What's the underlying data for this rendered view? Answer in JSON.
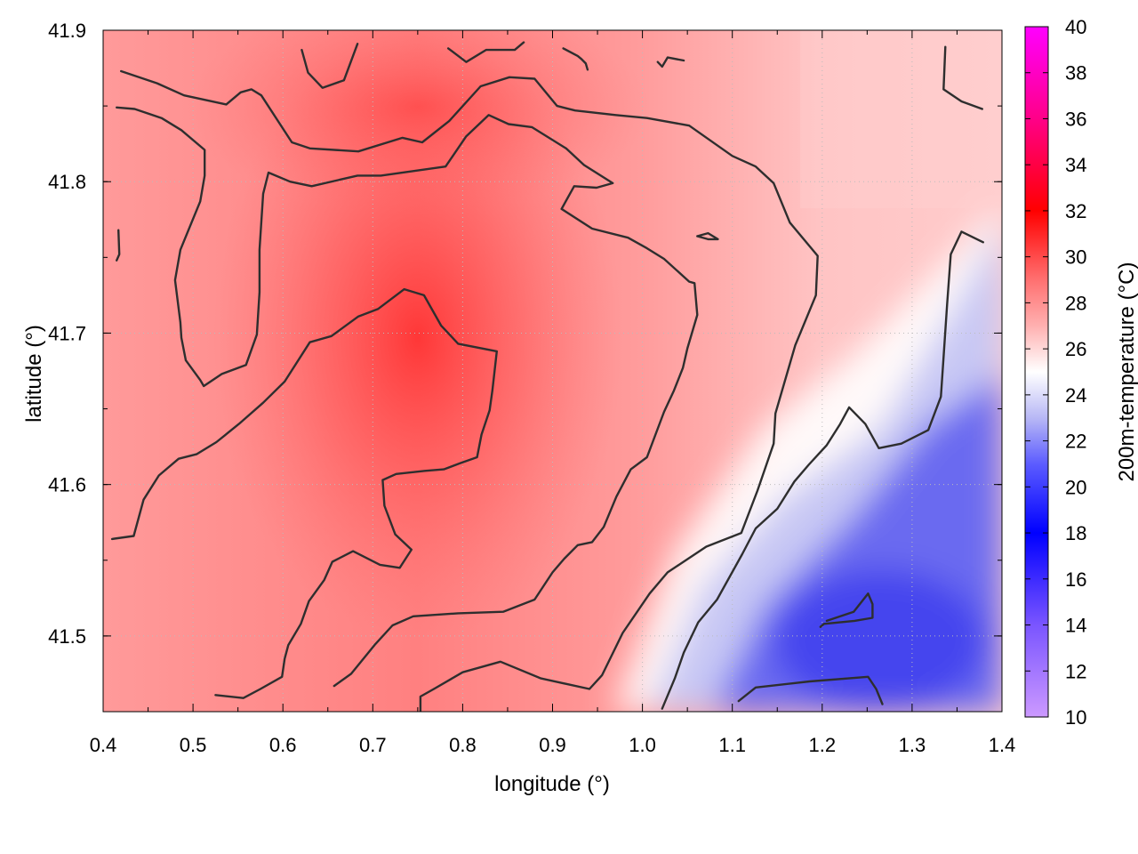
{
  "chart_data": {
    "type": "heatmap",
    "xlabel": "longitude (°)",
    "ylabel": "latitude (°)",
    "xlim": [
      0.4,
      1.4
    ],
    "ylim": [
      41.45,
      41.9
    ],
    "x_ticks": [
      "0.4",
      "0.5",
      "0.6",
      "0.7",
      "0.8",
      "0.9",
      "1.0",
      "1.1",
      "1.2",
      "1.3",
      "1.4"
    ],
    "x_tick_values": [
      0.4,
      0.5,
      0.6,
      0.7,
      0.8,
      0.9,
      1.0,
      1.1,
      1.2,
      1.3,
      1.4
    ],
    "y_ticks": [
      "41.5",
      "41.6",
      "41.7",
      "41.8",
      "41.9"
    ],
    "y_tick_values": [
      41.5,
      41.6,
      41.7,
      41.8,
      41.9
    ],
    "colorbar": {
      "label": "200m-temperature (°C)",
      "range": [
        10,
        40
      ],
      "ticks": [
        "10",
        "12",
        "14",
        "16",
        "18",
        "20",
        "22",
        "24",
        "26",
        "28",
        "30",
        "32",
        "34",
        "36",
        "38",
        "40"
      ],
      "tick_values": [
        10,
        12,
        14,
        16,
        18,
        20,
        22,
        24,
        26,
        28,
        30,
        32,
        34,
        36,
        38,
        40
      ],
      "colors": [
        {
          "value": 10,
          "color": "#cc99ff"
        },
        {
          "value": 14,
          "color": "#7a55ff"
        },
        {
          "value": 18,
          "color": "#0000ff"
        },
        {
          "value": 21,
          "color": "#5c5cff"
        },
        {
          "value": 23,
          "color": "#b8b8f5"
        },
        {
          "value": 25,
          "color": "#ffffff"
        },
        {
          "value": 27,
          "color": "#ffb0b0"
        },
        {
          "value": 29,
          "color": "#ff7070"
        },
        {
          "value": 32,
          "color": "#ff0000"
        },
        {
          "value": 36,
          "color": "#ff0088"
        },
        {
          "value": 40,
          "color": "#ff00ff"
        }
      ]
    },
    "contour_color": "#2e2e2e",
    "grid": true,
    "contours": [
      [
        [
          0.42,
          41.873
        ],
        [
          0.46,
          41.865
        ],
        [
          0.49,
          41.857
        ],
        [
          0.537,
          41.851
        ],
        [
          0.553,
          41.859
        ],
        [
          0.565,
          41.861
        ],
        [
          0.576,
          41.857
        ],
        [
          0.61,
          41.826
        ],
        [
          0.63,
          41.822
        ],
        [
          0.684,
          41.82
        ],
        [
          0.733,
          41.829
        ],
        [
          0.755,
          41.826
        ],
        [
          0.785,
          41.84
        ],
        [
          0.82,
          41.863
        ],
        [
          0.852,
          41.869
        ],
        [
          0.88,
          41.868
        ],
        [
          0.905,
          41.85
        ],
        [
          0.925,
          41.847
        ],
        [
          0.97,
          41.844
        ],
        [
          1.005,
          41.842
        ],
        [
          1.052,
          41.837
        ],
        [
          1.1,
          41.817
        ],
        [
          1.126,
          41.81
        ],
        [
          1.146,
          41.799
        ],
        [
          1.164,
          41.773
        ],
        [
          1.195,
          41.751
        ],
        [
          1.193,
          41.725
        ],
        [
          1.17,
          41.692
        ],
        [
          1.148,
          41.647
        ],
        [
          1.146,
          41.627
        ],
        [
          1.128,
          41.596
        ],
        [
          1.11,
          41.568
        ],
        [
          1.071,
          41.559
        ],
        [
          1.028,
          41.542
        ],
        [
          1.008,
          41.528
        ],
        [
          0.978,
          41.502
        ],
        [
          0.955,
          41.474
        ],
        [
          0.941,
          41.465
        ],
        [
          0.887,
          41.472
        ],
        [
          0.842,
          41.483
        ],
        [
          0.8,
          41.476
        ],
        [
          0.768,
          41.465
        ],
        [
          0.753,
          41.46
        ],
        [
          0.753,
          41.45
        ]
      ],
      [
        [
          0.415,
          41.849
        ],
        [
          0.435,
          41.848
        ],
        [
          0.465,
          41.842
        ],
        [
          0.487,
          41.834
        ],
        [
          0.513,
          41.821
        ],
        [
          0.513,
          41.804
        ],
        [
          0.508,
          41.787
        ],
        [
          0.486,
          41.755
        ],
        [
          0.48,
          41.735
        ],
        [
          0.486,
          41.707
        ],
        [
          0.487,
          41.697
        ],
        [
          0.492,
          41.682
        ],
        [
          0.508,
          41.669
        ],
        [
          0.512,
          41.665
        ],
        [
          0.532,
          41.673
        ],
        [
          0.559,
          41.679
        ],
        [
          0.571,
          41.699
        ],
        [
          0.574,
          41.727
        ],
        [
          0.574,
          41.755
        ],
        [
          0.578,
          41.792
        ],
        [
          0.584,
          41.806
        ],
        [
          0.608,
          41.8
        ],
        [
          0.632,
          41.797
        ],
        [
          0.683,
          41.804
        ],
        [
          0.709,
          41.804
        ],
        [
          0.781,
          41.81
        ],
        [
          0.804,
          41.83
        ],
        [
          0.829,
          41.844
        ],
        [
          0.851,
          41.838
        ],
        [
          0.877,
          41.836
        ],
        [
          0.915,
          41.822
        ],
        [
          0.935,
          41.811
        ],
        [
          0.967,
          41.799
        ],
        [
          0.949,
          41.796
        ],
        [
          0.924,
          41.797
        ],
        [
          0.91,
          41.782
        ],
        [
          0.944,
          41.769
        ],
        [
          0.984,
          41.763
        ],
        [
          1.005,
          41.756
        ],
        [
          1.024,
          41.749
        ],
        [
          1.052,
          41.734
        ],
        [
          1.058,
          41.733
        ],
        [
          1.061,
          41.712
        ],
        [
          1.05,
          41.69
        ],
        [
          1.045,
          41.677
        ],
        [
          1.035,
          41.662
        ],
        [
          1.024,
          41.648
        ],
        [
          1.005,
          41.618
        ],
        [
          0.987,
          41.61
        ],
        [
          0.971,
          41.592
        ],
        [
          0.957,
          41.572
        ],
        [
          0.944,
          41.562
        ],
        [
          0.928,
          41.56
        ],
        [
          0.913,
          41.551
        ],
        [
          0.9,
          41.542
        ],
        [
          0.88,
          41.524
        ],
        [
          0.845,
          41.516
        ],
        [
          0.795,
          41.515
        ],
        [
          0.745,
          41.513
        ],
        [
          0.722,
          41.507
        ],
        [
          0.702,
          41.494
        ],
        [
          0.676,
          41.475
        ],
        [
          0.657,
          41.467
        ]
      ],
      [
        [
          0.41,
          41.564
        ],
        [
          0.434,
          41.566
        ],
        [
          0.445,
          41.59
        ],
        [
          0.462,
          41.606
        ],
        [
          0.484,
          41.617
        ],
        [
          0.504,
          41.62
        ],
        [
          0.526,
          41.628
        ],
        [
          0.551,
          41.64
        ],
        [
          0.578,
          41.654
        ],
        [
          0.602,
          41.668
        ],
        [
          0.63,
          41.694
        ],
        [
          0.654,
          41.698
        ],
        [
          0.684,
          41.711
        ],
        [
          0.706,
          41.716
        ],
        [
          0.735,
          41.729
        ],
        [
          0.757,
          41.725
        ],
        [
          0.776,
          41.705
        ],
        [
          0.795,
          41.693
        ],
        [
          0.838,
          41.688
        ],
        [
          0.833,
          41.662
        ],
        [
          0.83,
          41.649
        ],
        [
          0.821,
          41.633
        ],
        [
          0.816,
          41.618
        ],
        [
          0.797,
          41.614
        ],
        [
          0.779,
          41.61
        ],
        [
          0.758,
          41.609
        ],
        [
          0.726,
          41.607
        ],
        [
          0.711,
          41.603
        ],
        [
          0.713,
          41.586
        ],
        [
          0.725,
          41.567
        ],
        [
          0.743,
          41.557
        ],
        [
          0.73,
          41.545
        ],
        [
          0.708,
          41.547
        ],
        [
          0.678,
          41.556
        ],
        [
          0.655,
          41.549
        ],
        [
          0.646,
          41.537
        ],
        [
          0.629,
          41.523
        ],
        [
          0.62,
          41.508
        ],
        [
          0.606,
          41.494
        ],
        [
          0.602,
          41.485
        ],
        [
          0.599,
          41.473
        ],
        [
          0.575,
          41.465
        ],
        [
          0.556,
          41.459
        ],
        [
          0.525,
          41.461
        ]
      ],
      [
        [
          1.107,
          41.457
        ],
        [
          1.126,
          41.466
        ],
        [
          1.186,
          41.47
        ],
        [
          1.251,
          41.473
        ],
        [
          1.26,
          41.465
        ],
        [
          1.267,
          41.455
        ]
      ],
      [
        [
          1.205,
          41.51
        ],
        [
          1.235,
          41.516
        ],
        [
          1.251,
          41.528
        ],
        [
          1.256,
          41.521
        ],
        [
          1.256,
          41.512
        ],
        [
          1.236,
          41.51
        ],
        [
          1.202,
          41.508
        ],
        [
          1.198,
          41.506
        ]
      ],
      [
        [
          1.022,
          41.452
        ],
        [
          1.036,
          41.472
        ],
        [
          1.046,
          41.489
        ],
        [
          1.062,
          41.509
        ],
        [
          1.083,
          41.524
        ],
        [
          1.111,
          41.554
        ],
        [
          1.126,
          41.571
        ],
        [
          1.15,
          41.584
        ],
        [
          1.169,
          41.602
        ],
        [
          1.185,
          41.613
        ],
        [
          1.205,
          41.626
        ],
        [
          1.22,
          41.64
        ],
        [
          1.23,
          41.651
        ],
        [
          1.248,
          41.64
        ],
        [
          1.263,
          41.624
        ],
        [
          1.288,
          41.627
        ],
        [
          1.318,
          41.636
        ],
        [
          1.332,
          41.658
        ],
        [
          1.335,
          41.684
        ],
        [
          1.339,
          41.719
        ],
        [
          1.343,
          41.752
        ],
        [
          1.355,
          41.767
        ],
        [
          1.379,
          41.76
        ]
      ],
      [
        [
          1.337,
          41.889
        ],
        [
          1.335,
          41.861
        ],
        [
          1.355,
          41.853
        ],
        [
          1.378,
          41.848
        ]
      ],
      [
        [
          0.621,
          41.887
        ],
        [
          0.628,
          41.872
        ],
        [
          0.644,
          41.862
        ],
        [
          0.668,
          41.867
        ],
        [
          0.683,
          41.891
        ]
      ],
      [
        [
          0.784,
          41.888
        ],
        [
          0.804,
          41.879
        ],
        [
          0.826,
          41.887
        ],
        [
          0.858,
          41.887
        ],
        [
          0.868,
          41.892
        ]
      ],
      [
        [
          0.912,
          41.888
        ],
        [
          0.928,
          41.883
        ],
        [
          0.932,
          41.881
        ],
        [
          0.937,
          41.878
        ],
        [
          0.939,
          41.874
        ]
      ],
      [
        [
          1.017,
          41.879
        ],
        [
          1.022,
          41.876
        ],
        [
          1.028,
          41.882
        ],
        [
          1.046,
          41.88
        ]
      ],
      [
        [
          0.417,
          41.768
        ],
        [
          0.418,
          41.752
        ],
        [
          0.415,
          41.748
        ]
      ],
      [
        [
          1.061,
          41.764
        ],
        [
          1.073,
          41.766
        ],
        [
          1.084,
          41.762
        ],
        [
          1.073,
          41.762
        ],
        [
          1.061,
          41.764
        ]
      ]
    ]
  }
}
